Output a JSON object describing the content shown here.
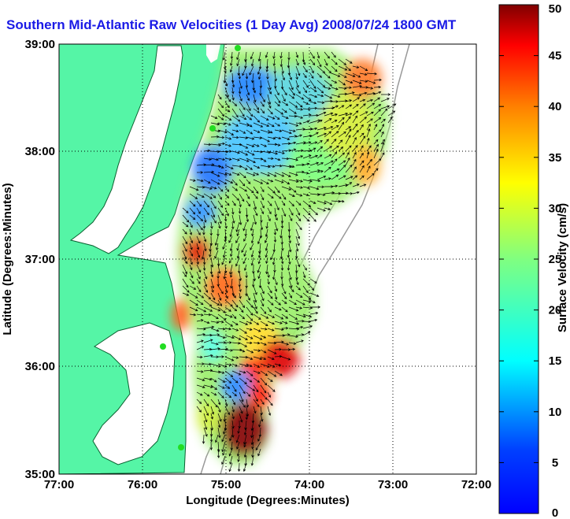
{
  "title": "Southern Mid-Atlantic Raw Velocities (1 Day Avg) 2008/07/24 1800 GMT",
  "colors": {
    "title": "#1a1ae6",
    "land": "#55f5a6",
    "grid": "#000000",
    "arrow": "#000000"
  },
  "chart_data": {
    "type": "heatmap",
    "xlabel": "Longitude (Degrees:Minutes)",
    "ylabel": "Latitude (Degrees:Minutes)",
    "x_ticks": [
      "77:00",
      "76:00",
      "75:00",
      "74:00",
      "73:00",
      "72:00"
    ],
    "y_ticks": [
      "39:00",
      "38:00",
      "37:00",
      "36:00",
      "35:00"
    ],
    "xlim": [
      -77,
      -72
    ],
    "ylim": [
      35,
      39
    ],
    "grid": true,
    "colorbar": {
      "label": "Surface Velocity (cm/s)",
      "ticks": [
        "0",
        "5",
        "10",
        "15",
        "20",
        "25",
        "30",
        "35",
        "40",
        "45",
        "50"
      ],
      "range": [
        0,
        50
      ],
      "colormap": "jet"
    }
  }
}
